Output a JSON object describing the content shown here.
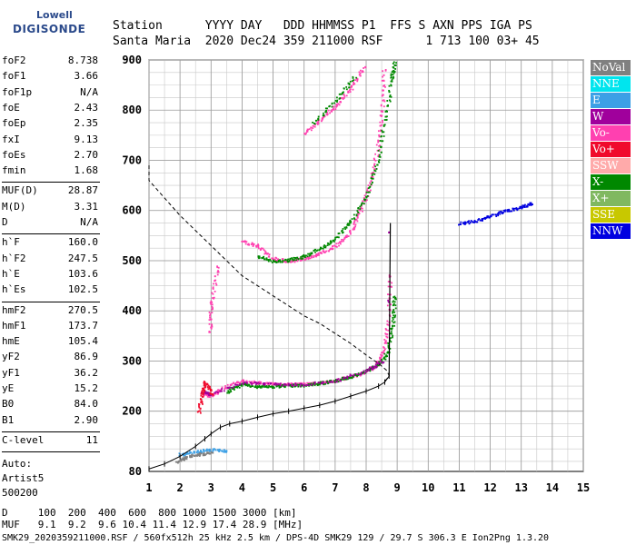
{
  "logo": {
    "line1": "Lowell",
    "line2": "DIGISONDE"
  },
  "header": {
    "line1": "Station      YYYY DAY   DDD HHMMSS P1  FFS S AXN PPS IGA PS",
    "line2": "Santa Maria  2020 Dec24 359 211000 RSF      1 713 100 03+ 45"
  },
  "params_group1": [
    {
      "label": "foF2",
      "value": "8.738"
    },
    {
      "label": "foF1",
      "value": "3.66"
    },
    {
      "label": "foF1p",
      "value": "N/A"
    },
    {
      "label": "foE",
      "value": "2.43"
    },
    {
      "label": "foEp",
      "value": "2.35"
    },
    {
      "label": "fxI",
      "value": "9.13"
    },
    {
      "label": "foEs",
      "value": "2.70"
    },
    {
      "label": "fmin",
      "value": "1.68"
    }
  ],
  "params_group2": [
    {
      "label": "MUF(D)",
      "value": "28.87"
    },
    {
      "label": "M(D)",
      "value": "3.31"
    },
    {
      "label": "D",
      "value": "N/A"
    }
  ],
  "params_group3": [
    {
      "label": "h`F",
      "value": "160.0"
    },
    {
      "label": "h`F2",
      "value": "247.5"
    },
    {
      "label": "h`E",
      "value": "103.6"
    },
    {
      "label": "h`Es",
      "value": "102.5"
    }
  ],
  "params_group4": [
    {
      "label": "hmF2",
      "value": "270.5"
    },
    {
      "label": "hmF1",
      "value": "173.7"
    },
    {
      "label": "hmE",
      "value": "105.4"
    },
    {
      "label": "yF2",
      "value": "86.9"
    },
    {
      "label": "yF1",
      "value": "36.2"
    },
    {
      "label": "yE",
      "value": "15.2"
    },
    {
      "label": "B0",
      "value": "84.0"
    },
    {
      "label": "B1",
      "value": "2.90"
    }
  ],
  "params_group5": [
    {
      "label": "C-level",
      "value": "11"
    }
  ],
  "autoscale": {
    "line1": "Auto:",
    "line2": "Artist5",
    "line3": "500200"
  },
  "legend": [
    {
      "label": "NoVal",
      "color": "#808080"
    },
    {
      "label": "NNE",
      "color": "#00e5ee"
    },
    {
      "label": "E",
      "color": "#3ca0e6"
    },
    {
      "label": "W",
      "color": "#a0009c"
    },
    {
      "label": "Vo-",
      "color": "#ff40b0"
    },
    {
      "label": "Vo+",
      "color": "#f00a2c"
    },
    {
      "label": "SSW",
      "color": "#ffaaaa"
    },
    {
      "label": "X-",
      "color": "#008800"
    },
    {
      "label": "X+",
      "color": "#80b860"
    },
    {
      "label": "SSE",
      "color": "#c8c800"
    },
    {
      "label": "NNW",
      "color": "#0000e0"
    }
  ],
  "footer": {
    "line1": "D     100  200  400  600  800 1000 1500 3000 [km]",
    "line2": "MUF   9.1  9.2  9.6 10.4 11.4 12.9 17.4 28.9 [MHz]",
    "line3": "SMK29_2020359211000.RSF / 560fx512h 25 kHz 2.5 km / DPS-4D SMK29 129 / 29.7 S 306.3 E Ion2Png 1.3.20"
  },
  "chart_data": {
    "type": "scatter",
    "title": "",
    "xlabel": "",
    "ylabel": "",
    "xlim": [
      1,
      15
    ],
    "ylim": [
      80,
      900
    ],
    "x_ticks": [
      1,
      2,
      3,
      4,
      5,
      6,
      7,
      8,
      9,
      10,
      11,
      12,
      13,
      14,
      15
    ],
    "y_ticks": [
      80,
      200,
      300,
      400,
      500,
      600,
      700,
      800,
      900
    ],
    "grid": true,
    "series": [
      {
        "name": "Vo-",
        "color": "#ff40b0",
        "points": [
          [
            2.75,
            235
          ],
          [
            3.0,
            232
          ],
          [
            3.3,
            245
          ],
          [
            4.0,
            262
          ],
          [
            4.5,
            258
          ],
          [
            5.0,
            255
          ],
          [
            5.5,
            255
          ],
          [
            6.0,
            255
          ],
          [
            6.5,
            258
          ],
          [
            7.0,
            262
          ],
          [
            7.5,
            270
          ],
          [
            8.0,
            280
          ],
          [
            8.3,
            292
          ],
          [
            8.55,
            320
          ],
          [
            8.7,
            380
          ],
          [
            8.75,
            470
          ],
          [
            4.0,
            540
          ],
          [
            4.5,
            530
          ],
          [
            5.0,
            505
          ],
          [
            5.5,
            500
          ],
          [
            6.0,
            505
          ],
          [
            6.5,
            515
          ],
          [
            7.0,
            530
          ],
          [
            7.5,
            560
          ],
          [
            7.8,
            600
          ],
          [
            8.1,
            650
          ],
          [
            8.35,
            720
          ],
          [
            8.5,
            800
          ],
          [
            8.55,
            880
          ],
          [
            6.0,
            755
          ],
          [
            6.5,
            780
          ],
          [
            7.0,
            810
          ],
          [
            7.5,
            845
          ],
          [
            7.9,
            885
          ],
          [
            3.2,
            490
          ],
          [
            3.0,
            420
          ],
          [
            2.95,
            360
          ]
        ]
      },
      {
        "name": "X-",
        "color": "#008800",
        "points": [
          [
            3.5,
            240
          ],
          [
            4.0,
            255
          ],
          [
            4.5,
            250
          ],
          [
            5.0,
            250
          ],
          [
            5.5,
            252
          ],
          [
            6.0,
            253
          ],
          [
            6.5,
            257
          ],
          [
            7.0,
            262
          ],
          [
            7.5,
            270
          ],
          [
            8.0,
            282
          ],
          [
            8.4,
            295
          ],
          [
            8.7,
            320
          ],
          [
            8.85,
            380
          ],
          [
            8.9,
            430
          ],
          [
            4.5,
            510
          ],
          [
            5.0,
            500
          ],
          [
            5.5,
            502
          ],
          [
            6.0,
            510
          ],
          [
            6.5,
            525
          ],
          [
            7.0,
            545
          ],
          [
            7.5,
            580
          ],
          [
            8.0,
            630
          ],
          [
            8.35,
            700
          ],
          [
            8.6,
            780
          ],
          [
            8.8,
            860
          ],
          [
            8.9,
            895
          ],
          [
            6.3,
            775
          ],
          [
            7.0,
            820
          ],
          [
            7.6,
            865
          ]
        ]
      },
      {
        "name": "W",
        "color": "#a0009c",
        "points": [
          [
            2.7,
            240
          ],
          [
            3.0,
            235
          ],
          [
            4.0,
            258
          ],
          [
            5.0,
            255
          ],
          [
            6.0,
            254
          ],
          [
            7.0,
            262
          ],
          [
            8.0,
            282
          ],
          [
            8.5,
            300
          ],
          [
            8.7,
            420
          ],
          [
            8.72,
            560
          ]
        ]
      },
      {
        "name": "Vo+",
        "color": "#f00a2c",
        "points": [
          [
            2.6,
            200
          ],
          [
            2.7,
            235
          ],
          [
            2.8,
            260
          ],
          [
            3.0,
            235
          ]
        ]
      },
      {
        "name": "E",
        "color": "#3ca0e6",
        "points": [
          [
            2.0,
            115
          ],
          [
            2.5,
            120
          ],
          [
            3.0,
            125
          ],
          [
            3.5,
            122
          ]
        ]
      },
      {
        "name": "NNW",
        "color": "#0000e0",
        "points": [
          [
            11.0,
            575
          ],
          [
            11.5,
            580
          ],
          [
            12.0,
            590
          ],
          [
            12.5,
            600
          ],
          [
            13.0,
            608
          ],
          [
            13.3,
            615
          ]
        ]
      },
      {
        "name": "NoVal",
        "color": "#808080",
        "points": [
          [
            1.9,
            100
          ],
          [
            2.2,
            110
          ],
          [
            2.6,
            115
          ],
          [
            3.0,
            118
          ]
        ]
      }
    ],
    "electron_density_profile": [
      [
        0.5,
        690
      ],
      [
        1.0,
        660
      ],
      [
        1.5,
        625
      ],
      [
        2.0,
        590
      ],
      [
        2.5,
        560
      ],
      [
        3.0,
        530
      ],
      [
        3.5,
        500
      ],
      [
        4.0,
        470
      ],
      [
        4.5,
        450
      ],
      [
        5.0,
        430
      ],
      [
        5.5,
        410
      ],
      [
        6.0,
        390
      ],
      [
        6.5,
        375
      ],
      [
        7.0,
        355
      ],
      [
        7.5,
        335
      ],
      [
        8.0,
        312
      ],
      [
        8.4,
        295
      ],
      [
        8.65,
        282
      ],
      [
        8.75,
        270
      ],
      [
        8.6,
        260
      ]
    ],
    "true_height_profile": [
      [
        1.0,
        85
      ],
      [
        1.5,
        95
      ],
      [
        2.0,
        110
      ],
      [
        2.5,
        130
      ],
      [
        2.8,
        145
      ],
      [
        3.0,
        155
      ],
      [
        3.3,
        168
      ],
      [
        3.6,
        175
      ],
      [
        4.0,
        180
      ],
      [
        4.5,
        188
      ],
      [
        5.0,
        195
      ],
      [
        5.5,
        200
      ],
      [
        6.0,
        206
      ],
      [
        6.5,
        212
      ],
      [
        7.0,
        220
      ],
      [
        7.5,
        230
      ],
      [
        8.0,
        240
      ],
      [
        8.4,
        250
      ],
      [
        8.6,
        258
      ],
      [
        8.74,
        270
      ]
    ],
    "spikes": [
      [
        8.74,
        270
      ],
      [
        8.78,
        575
      ]
    ]
  }
}
